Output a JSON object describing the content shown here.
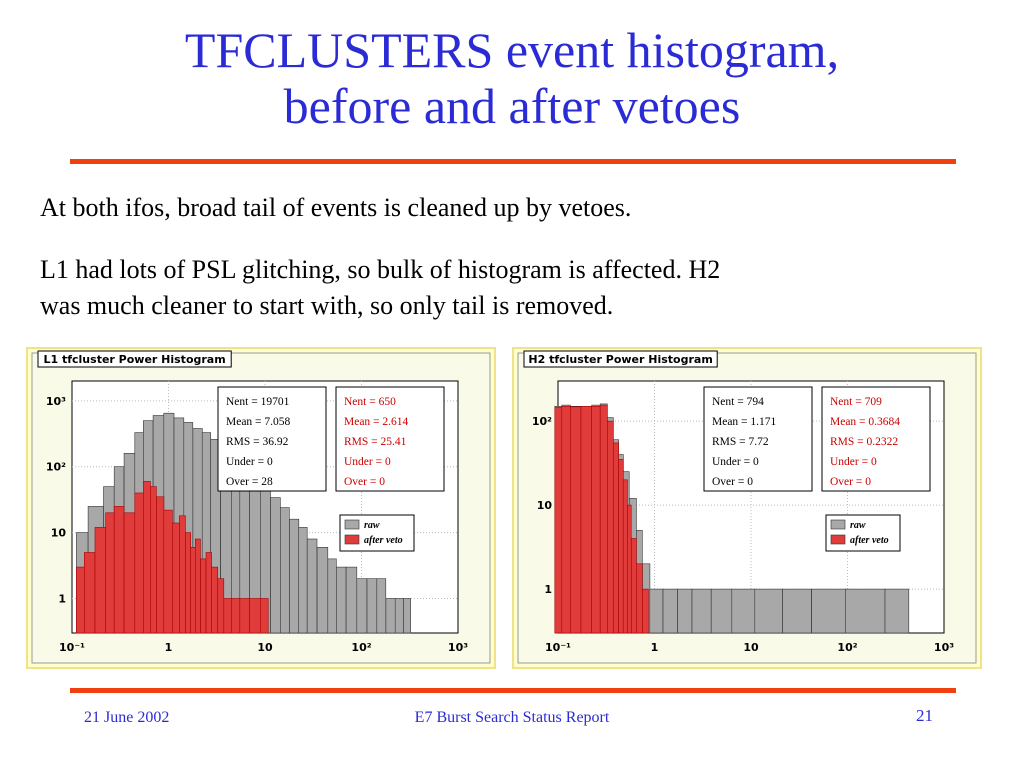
{
  "slide": {
    "title_line1": "TFCLUSTERS event histogram,",
    "title_line2": "before and after vetoes",
    "para1": "At both ifos, broad tail of events is cleaned up by vetoes.",
    "para2_line1": "L1 had lots of PSL glitching, so bulk of histogram is affected. H2",
    "para2_line2": "was much cleaner to start with, so only tail is removed.",
    "footer_date": "21 June 2002",
    "footer_title": "E7 Burst Search Status Report",
    "page_number": "21"
  },
  "colors": {
    "title": "#2b2bd6",
    "rule": "#f04010",
    "raw_fill": "#a8a8a8",
    "veto_fill": "#e03c3c",
    "panel_border": "#f0e28a",
    "stat_red": "#cc0000"
  },
  "chart_data": [
    {
      "type": "histogram",
      "title": "L1 tfcluster Power Histogram",
      "x_scale": "log",
      "y_scale": "log",
      "xlim": [
        0.1,
        1000
      ],
      "ylim": [
        0.3,
        2000
      ],
      "x_tick_labels": [
        "10⁻¹",
        "1",
        "10",
        "10²",
        "10³"
      ],
      "y_tick_labels": [
        "1",
        "10",
        "10²",
        "10³"
      ],
      "legend": {
        "position": "right-middle",
        "entries": [
          "raw",
          "after veto"
        ]
      },
      "stats": [
        {
          "series": "raw",
          "lines": [
            "Nent = 19701",
            "Mean  =  7.058",
            "RMS   =  36.92",
            "Under =      0",
            "Over  =     28"
          ]
        },
        {
          "series": "after veto",
          "lines": [
            "Nent = 650",
            "Mean  =  2.614",
            "RMS   =  25.41",
            "Under =      0",
            "Over  =      0"
          ]
        }
      ],
      "series": [
        {
          "name": "raw",
          "x": [
            0.12,
            0.18,
            0.25,
            0.3,
            0.4,
            0.5,
            0.6,
            0.8,
            1.0,
            1.3,
            1.6,
            2.0,
            2.5,
            3.0,
            4.0,
            5.0,
            6.0,
            8.0,
            10,
            13,
            16,
            20,
            25,
            30,
            40,
            50,
            60,
            80,
            100,
            130,
            160,
            200,
            250,
            300
          ],
          "y": [
            10,
            25,
            50,
            100,
            160,
            330,
            500,
            600,
            650,
            550,
            470,
            380,
            330,
            260,
            200,
            150,
            110,
            70,
            50,
            34,
            24,
            16,
            12,
            8,
            6,
            4,
            3,
            3,
            2,
            2,
            2,
            1,
            1,
            1
          ]
        },
        {
          "name": "after veto",
          "x": [
            0.12,
            0.15,
            0.2,
            0.25,
            0.3,
            0.4,
            0.5,
            0.6,
            0.7,
            0.8,
            1.0,
            1.2,
            1.4,
            1.6,
            1.8,
            2.0,
            2.3,
            2.6,
            3.0,
            3.5,
            4.0,
            5.0,
            6.0,
            8.0,
            10
          ],
          "y": [
            3,
            5,
            12,
            20,
            25,
            20,
            40,
            60,
            50,
            35,
            22,
            14,
            18,
            10,
            6,
            8,
            4,
            5,
            3,
            2,
            1,
            1,
            1,
            1,
            1
          ]
        }
      ]
    },
    {
      "type": "histogram",
      "title": "H2 tfcluster Power Histogram",
      "x_scale": "log",
      "y_scale": "log",
      "xlim": [
        0.1,
        1000
      ],
      "ylim": [
        0.3,
        300
      ],
      "x_tick_labels": [
        "10⁻¹",
        "1",
        "10",
        "10²",
        "10³"
      ],
      "y_tick_labels": [
        "1",
        "10",
        "10²"
      ],
      "legend": {
        "position": "right-middle",
        "entries": [
          "raw",
          "after veto"
        ]
      },
      "stats": [
        {
          "series": "raw",
          "lines": [
            "Nent = 794",
            "Mean  =  1.171",
            "RMS   =  7.72",
            "Under =      0",
            "Over  =      0"
          ]
        },
        {
          "series": "after veto",
          "lines": [
            "Nent = 709",
            "Mean  = 0.3684",
            "RMS   = 0.2322",
            "Under =      0",
            "Over  =      0"
          ]
        }
      ],
      "series": [
        {
          "name": "raw",
          "x": [
            0.1,
            0.12,
            0.15,
            0.2,
            0.25,
            0.3,
            0.35,
            0.4,
            0.45,
            0.5,
            0.6,
            0.7,
            0.8,
            1.0,
            1.5,
            2,
            3,
            5,
            8,
            15,
            30,
            60,
            150,
            400
          ],
          "y": [
            150,
            155,
            150,
            150,
            155,
            160,
            110,
            60,
            40,
            25,
            12,
            5,
            2,
            1,
            1,
            1,
            1,
            1,
            1,
            1,
            1,
            1,
            1,
            1
          ]
        },
        {
          "name": "after veto",
          "x": [
            0.1,
            0.12,
            0.15,
            0.2,
            0.25,
            0.3,
            0.35,
            0.4,
            0.45,
            0.5,
            0.55,
            0.6,
            0.7,
            0.8
          ],
          "y": [
            145,
            150,
            148,
            150,
            150,
            155,
            100,
            55,
            35,
            20,
            10,
            4,
            2,
            1
          ]
        }
      ]
    }
  ]
}
